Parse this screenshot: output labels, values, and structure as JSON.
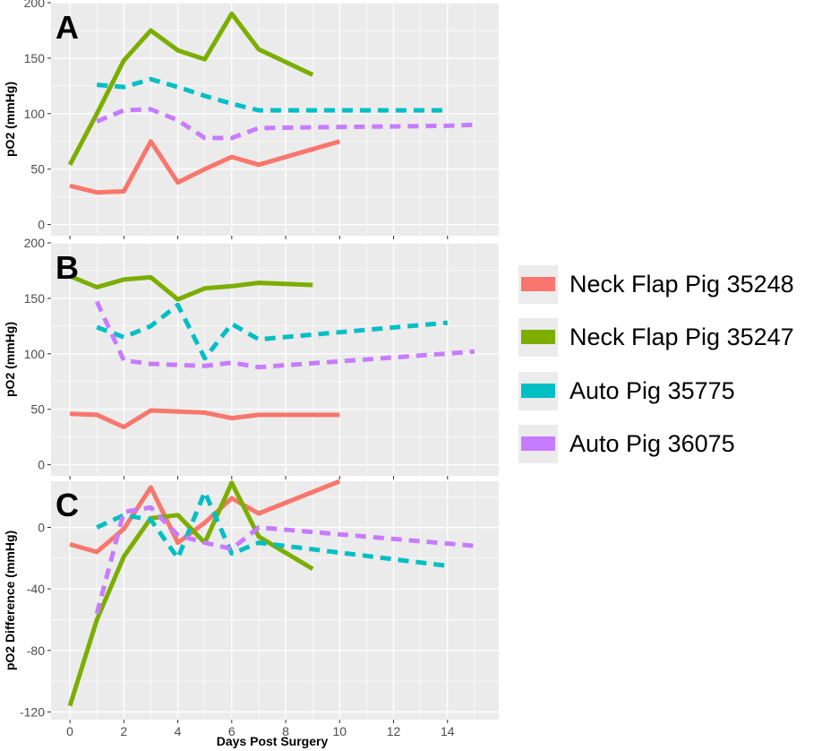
{
  "figure": {
    "xlabel": "Days Post Surgery",
    "xticks": [
      0,
      2,
      4,
      6,
      8,
      10,
      12,
      14
    ],
    "xlim": [
      -0.7,
      15.9
    ]
  },
  "series_styles": [
    {
      "name": "Neck Flap Pig 35248",
      "color": "#F8766D",
      "dash": "solid"
    },
    {
      "name": "Neck Flap Pig 35247",
      "color": "#7CAE00",
      "dash": "solid"
    },
    {
      "name": "Auto Pig 35775",
      "color": "#00BFC4",
      "dash": "dashed"
    },
    {
      "name": "Auto Pig 36075",
      "color": "#C77CFF",
      "dash": "dashed"
    }
  ],
  "chart_data": [
    {
      "panel": "A",
      "type": "line",
      "title": "",
      "xlabel": "",
      "ylabel": "pO2 (mmHg)",
      "ylim": [
        -10,
        200
      ],
      "yticks": [
        0,
        50,
        100,
        150,
        200
      ],
      "series": [
        {
          "name": "Neck Flap Pig 35248",
          "x": [
            0,
            1,
            2,
            3,
            4,
            5,
            6,
            7,
            10
          ],
          "y": [
            35,
            29,
            30,
            75,
            38,
            50,
            61,
            54,
            75
          ]
        },
        {
          "name": "Neck Flap Pig 35247",
          "x": [
            0,
            1,
            2,
            3,
            4,
            5,
            6,
            7,
            9
          ],
          "y": [
            54,
            100,
            148,
            175,
            157,
            149,
            190,
            158,
            135
          ]
        },
        {
          "name": "Auto Pig 35775",
          "x": [
            1,
            2,
            3,
            4,
            5,
            6,
            7,
            10,
            14
          ],
          "y": [
            126,
            124,
            131,
            124,
            116,
            109,
            103,
            103,
            103
          ]
        },
        {
          "name": "Auto Pig 36075",
          "x": [
            1,
            2,
            3,
            4,
            5,
            6,
            7,
            10,
            14,
            15
          ],
          "y": [
            93,
            103,
            104,
            94,
            78,
            78,
            87,
            88,
            89,
            90
          ]
        }
      ]
    },
    {
      "panel": "B",
      "type": "line",
      "title": "",
      "xlabel": "",
      "ylabel": "pO2 (mmHg)",
      "ylim": [
        -10,
        200
      ],
      "yticks": [
        0,
        50,
        100,
        150,
        200
      ],
      "series": [
        {
          "name": "Neck Flap Pig 35248",
          "x": [
            0,
            1,
            2,
            3,
            4,
            5,
            6,
            7,
            10
          ],
          "y": [
            46,
            45,
            34,
            49,
            48,
            47,
            42,
            45,
            45
          ]
        },
        {
          "name": "Neck Flap Pig 35247",
          "x": [
            0,
            1,
            2,
            3,
            4,
            5,
            6,
            7,
            9
          ],
          "y": [
            170,
            160,
            167,
            169,
            149,
            159,
            161,
            164,
            162
          ]
        },
        {
          "name": "Auto Pig 35775",
          "x": [
            1,
            2,
            3,
            4,
            5,
            6,
            7,
            14
          ],
          "y": [
            124,
            115,
            125,
            144,
            96,
            127,
            113,
            128
          ]
        },
        {
          "name": "Auto Pig 36075",
          "x": [
            1,
            2,
            3,
            4,
            5,
            6,
            7,
            15
          ],
          "y": [
            147,
            94,
            91,
            90,
            89,
            92,
            88,
            102
          ]
        }
      ]
    },
    {
      "panel": "C",
      "type": "line",
      "title": "",
      "xlabel": "Days Post Surgery",
      "ylabel": "pO2 Difference (mmHg)",
      "ylim": [
        -125,
        30
      ],
      "yticks": [
        -120,
        -80,
        -40,
        0
      ],
      "series": [
        {
          "name": "Neck Flap Pig 35248",
          "x": [
            0,
            1,
            2,
            3,
            4,
            5,
            6,
            7,
            10
          ],
          "y": [
            -11,
            -16,
            -1,
            26,
            -10,
            3,
            19,
            9,
            30
          ]
        },
        {
          "name": "Neck Flap Pig 35247",
          "x": [
            0,
            1,
            2,
            3,
            4,
            5,
            6,
            7,
            9
          ],
          "y": [
            -116,
            -60,
            -19,
            6,
            8,
            -10,
            29,
            -6,
            -27
          ]
        },
        {
          "name": "Auto Pig 35775",
          "x": [
            1,
            2,
            3,
            4,
            5,
            6,
            7,
            14
          ],
          "y": [
            0,
            8,
            5,
            -20,
            23,
            -17,
            -10,
            -25
          ]
        },
        {
          "name": "Auto Pig 36075",
          "x": [
            1,
            2,
            3,
            4,
            5,
            6,
            7,
            15
          ],
          "y": [
            -56,
            10,
            13,
            -5,
            -10,
            -14,
            0,
            -12
          ]
        }
      ]
    }
  ],
  "legend": {
    "placement": "right",
    "entries": [
      "Neck Flap Pig 35248",
      "Neck Flap Pig 35247",
      "Auto Pig 35775",
      "Auto Pig 36075"
    ]
  }
}
